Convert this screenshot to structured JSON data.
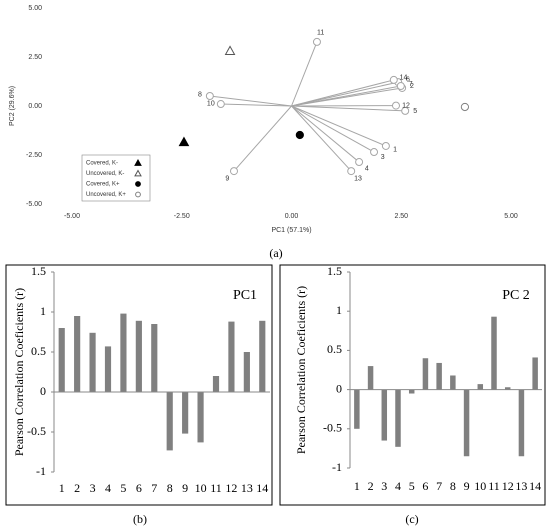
{
  "chart_data": [
    {
      "type": "biplot",
      "xlabel": "PC1 (57.1%)",
      "ylabel": "PC2 (29.6%)",
      "caption": "(a)",
      "xlim": [
        -5,
        5
      ],
      "ylim": [
        -5,
        5
      ],
      "xticks": [
        {
          "value": -5,
          "label": "-5.00"
        },
        {
          "value": -2.5,
          "label": "-2.50"
        },
        {
          "value": 0,
          "label": "0.00"
        },
        {
          "value": 2.5,
          "label": "2.50"
        },
        {
          "value": 5,
          "label": "5.00"
        }
      ],
      "yticks": [
        {
          "value": -5,
          "label": "-5.00"
        },
        {
          "value": -2.5,
          "label": "-2.50"
        },
        {
          "value": 0,
          "label": "0.00"
        },
        {
          "value": 2.5,
          "label": "2.50"
        },
        {
          "value": 5,
          "label": "5.00"
        }
      ],
      "vector_color": "#a6a6a6",
      "vectors": {
        "labels": [
          "1",
          "2",
          "3",
          "4",
          "5",
          "6",
          "7",
          "8",
          "9",
          "10",
          "11",
          "12",
          "13",
          "14"
        ],
        "x": [
          2.15,
          2.52,
          1.88,
          1.54,
          2.59,
          2.43,
          2.49,
          -1.86,
          -1.31,
          -1.61,
          0.58,
          2.38,
          1.36,
          2.33
        ],
        "y": [
          -2.04,
          0.92,
          -2.35,
          -2.86,
          -0.25,
          1.22,
          1.02,
          0.51,
          -3.32,
          0.1,
          3.27,
          0.02,
          -3.32,
          1.33
        ]
      },
      "series": [
        {
          "name": "Covered, K-",
          "marker": "triangle",
          "filled": true,
          "color": "#000000",
          "x": [
            -2.45
          ],
          "y": [
            -1.84
          ]
        },
        {
          "name": "Uncovered, K-",
          "marker": "triangle",
          "filled": false,
          "color": "#555555",
          "x": [
            -1.4
          ],
          "y": [
            2.81
          ]
        },
        {
          "name": "Covered, K+",
          "marker": "circle",
          "filled": true,
          "color": "#000000",
          "x": [
            0.19
          ],
          "y": [
            -1.48
          ]
        },
        {
          "name": "Uncovered, K+",
          "marker": "circle",
          "filled": false,
          "color": "#808080",
          "x": [
            3.95
          ],
          "y": [
            -0.05
          ]
        }
      ],
      "legend": "lower left"
    },
    {
      "type": "bar",
      "title": "PC1",
      "ylabel": "Pearson Correlation Coeficients (r)",
      "caption": "(b)",
      "categories": [
        "1",
        "2",
        "3",
        "4",
        "5",
        "6",
        "7",
        "8",
        "9",
        "10",
        "11",
        "12",
        "13",
        "14"
      ],
      "values": [
        0.8,
        0.95,
        0.74,
        0.57,
        0.98,
        0.89,
        0.85,
        -0.73,
        -0.52,
        -0.63,
        0.2,
        0.88,
        0.5,
        0.89
      ],
      "color": "#808080",
      "ylim": [
        -1,
        1.5
      ],
      "yticks": [
        -1,
        -0.5,
        0,
        0.5,
        1,
        1.5
      ]
    },
    {
      "type": "bar",
      "title": "PC 2",
      "ylabel": "Pearson Correlation Coeficients (r)",
      "caption": "(c)",
      "categories": [
        "1",
        "2",
        "3",
        "4",
        "5",
        "6",
        "7",
        "8",
        "9",
        "10",
        "11",
        "12",
        "13",
        "14"
      ],
      "values": [
        -0.5,
        0.3,
        -0.65,
        -0.73,
        -0.05,
        0.4,
        0.34,
        0.18,
        -0.85,
        0.07,
        0.93,
        0.03,
        -0.85,
        0.41
      ],
      "color": "#808080",
      "ylim": [
        -1,
        1.5
      ],
      "yticks": [
        -1,
        -0.5,
        0,
        0.5,
        1,
        1.5
      ]
    }
  ]
}
